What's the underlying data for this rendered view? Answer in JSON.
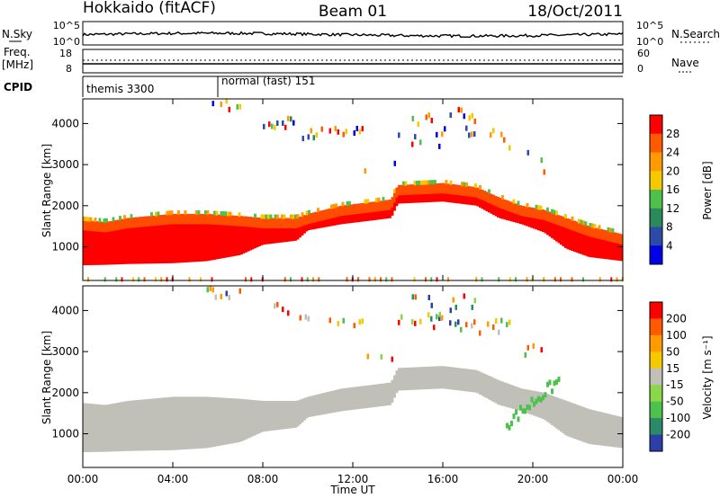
{
  "header": {
    "station": "Hokkaido (fitACF)",
    "beam": "Beam 01",
    "date": "18/Oct/2011"
  },
  "top_panels": {
    "left_label_noise": "N.Sky",
    "right_label_noise": "N.Search",
    "noise_axis_ticks": [
      "10^5",
      "10^0"
    ],
    "left_label_freq": "Freq.",
    "left_label_freq_unit": "[MHz]",
    "freq_ticks": [
      "18",
      "8"
    ],
    "nave_ticks": [
      "60",
      "0"
    ],
    "right_label_nave": "Nave",
    "cpid_label": "CPID",
    "cpid_segments": [
      {
        "name": "themis 3300",
        "start_hour": 0
      },
      {
        "name": "normal (fast) 151",
        "start_hour": 6
      }
    ]
  },
  "chart_data": [
    {
      "type": "heatmap",
      "name": "power",
      "ylabel": "Slant Range [km]",
      "xlabel": "Time UT",
      "xlim": [
        0,
        24
      ],
      "ylim": [
        180,
        4600
      ],
      "x_ticks": [
        "00:00",
        "04:00",
        "08:00",
        "12:00",
        "16:00",
        "20:00",
        "00:00"
      ],
      "y_ticks": [
        "1000",
        "2000",
        "3000",
        "4000"
      ],
      "colorbar_label": "Power [dB]",
      "colorbar_ticks": [
        "4",
        "8",
        "12",
        "16",
        "20",
        "24",
        "28"
      ],
      "colorbar_colors": [
        "#0000e8",
        "#2c4aa8",
        "#2a8a5a",
        "#4cc14c",
        "#f5c800",
        "#ff9a00",
        "#ff5a00",
        "#ff0000"
      ],
      "main_band": [
        {
          "t": 0,
          "lo": 550,
          "hi": 1650,
          "top_color": "#ff9a00"
        },
        {
          "t": 1,
          "lo": 560,
          "hi": 1600
        },
        {
          "t": 2,
          "lo": 580,
          "hi": 1700
        },
        {
          "t": 4,
          "lo": 600,
          "hi": 1800
        },
        {
          "t": 5.5,
          "lo": 650,
          "hi": 1800
        },
        {
          "t": 7,
          "lo": 800,
          "hi": 1750
        },
        {
          "t": 8,
          "lo": 1050,
          "hi": 1700
        },
        {
          "t": 9.5,
          "lo": 1150,
          "hi": 1700
        },
        {
          "t": 10,
          "lo": 1400,
          "hi": 1800
        },
        {
          "t": 11.5,
          "lo": 1550,
          "hi": 2000
        },
        {
          "t": 13,
          "lo": 1650,
          "hi": 2100
        },
        {
          "t": 13.7,
          "lo": 1700,
          "hi": 2150
        },
        {
          "t": 14,
          "lo": 2050,
          "hi": 2500
        },
        {
          "t": 16,
          "lo": 2100,
          "hi": 2550
        },
        {
          "t": 17.5,
          "lo": 2000,
          "hi": 2450
        },
        {
          "t": 18.5,
          "lo": 1700,
          "hi": 2200
        },
        {
          "t": 19.5,
          "lo": 1550,
          "hi": 2000
        },
        {
          "t": 20.5,
          "lo": 1350,
          "hi": 1900
        },
        {
          "t": 21.5,
          "lo": 950,
          "hi": 1700
        },
        {
          "t": 22.5,
          "lo": 750,
          "hi": 1500
        },
        {
          "t": 24,
          "lo": 650,
          "hi": 1300
        }
      ],
      "upper_patches": [
        {
          "t0": 5.5,
          "t1": 7.0,
          "y0": 4300,
          "y1": 4550
        },
        {
          "t0": 8.0,
          "t1": 9.5,
          "y0": 3900,
          "y1": 4150
        },
        {
          "t0": 9.5,
          "t1": 12.5,
          "y0": 3600,
          "y1": 3900
        },
        {
          "t0": 12.5,
          "t1": 14.0,
          "y0": 2700,
          "y1": 3100
        },
        {
          "t0": 14.0,
          "t1": 19.0,
          "y0": 3400,
          "y1": 3900
        },
        {
          "t0": 14.5,
          "t1": 17.5,
          "y0": 3900,
          "y1": 4350
        },
        {
          "t0": 19.5,
          "t1": 20.5,
          "y0": 2800,
          "y1": 3300
        }
      ]
    },
    {
      "type": "heatmap",
      "name": "velocity",
      "ylabel": "Slant Range [km]",
      "xlabel": "Time UT",
      "xlim": [
        0,
        24
      ],
      "ylim": [
        180,
        4600
      ],
      "x_ticks": [
        "00:00",
        "04:00",
        "08:00",
        "12:00",
        "16:00",
        "20:00",
        "00:00"
      ],
      "y_ticks": [
        "1000",
        "2000",
        "3000",
        "4000"
      ],
      "colorbar_label": "Velocity [m s⁻¹]",
      "colorbar_ticks": [
        "200",
        "100",
        "50",
        "15",
        "-15",
        "-50",
        "-100",
        "-200"
      ],
      "colorbar_colors": [
        "#2c3ea8",
        "#2a8a6a",
        "#4cc14c",
        "#8ad84a",
        "#c0c0b8",
        "#f5c800",
        "#ff9a00",
        "#ff5a00",
        "#ff0000"
      ],
      "ground_scatter_color": "#c0c0b8"
    }
  ],
  "x_axis_title": "Time UT"
}
